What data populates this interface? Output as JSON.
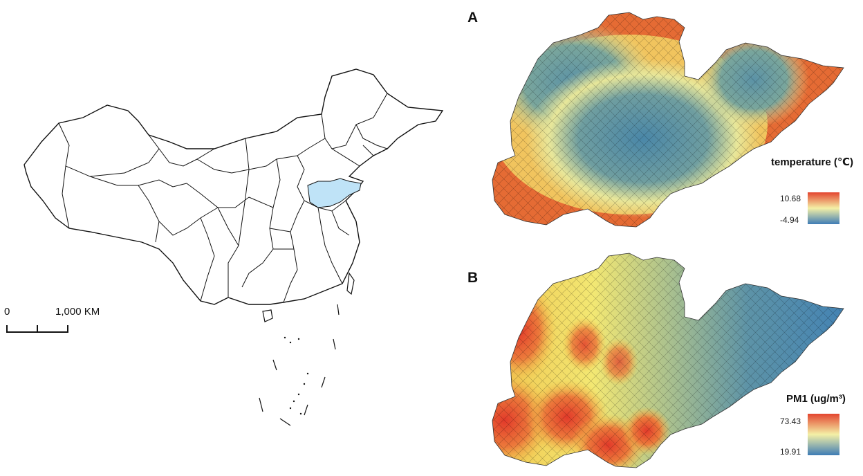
{
  "china_map": {
    "highlighted_province_color": "#bfe3f7",
    "scale_bar": {
      "zero_label": "0",
      "distance_label": "1,000 KM"
    }
  },
  "panel_a": {
    "letter": "A",
    "legend": {
      "title": "temperature (℃)",
      "max_label": "10.68",
      "min_label": "-4.94",
      "color_high": "#e3452f",
      "color_mid": "#f4f0a6",
      "color_low": "#3e7cb5"
    }
  },
  "panel_b": {
    "letter": "B",
    "legend": {
      "title": "PM1 (ug/m³)",
      "max_label": "73.43",
      "min_label": "19.91",
      "color_high": "#e3452f",
      "color_mid": "#f4f0a6",
      "color_low": "#3e7cb5"
    }
  }
}
